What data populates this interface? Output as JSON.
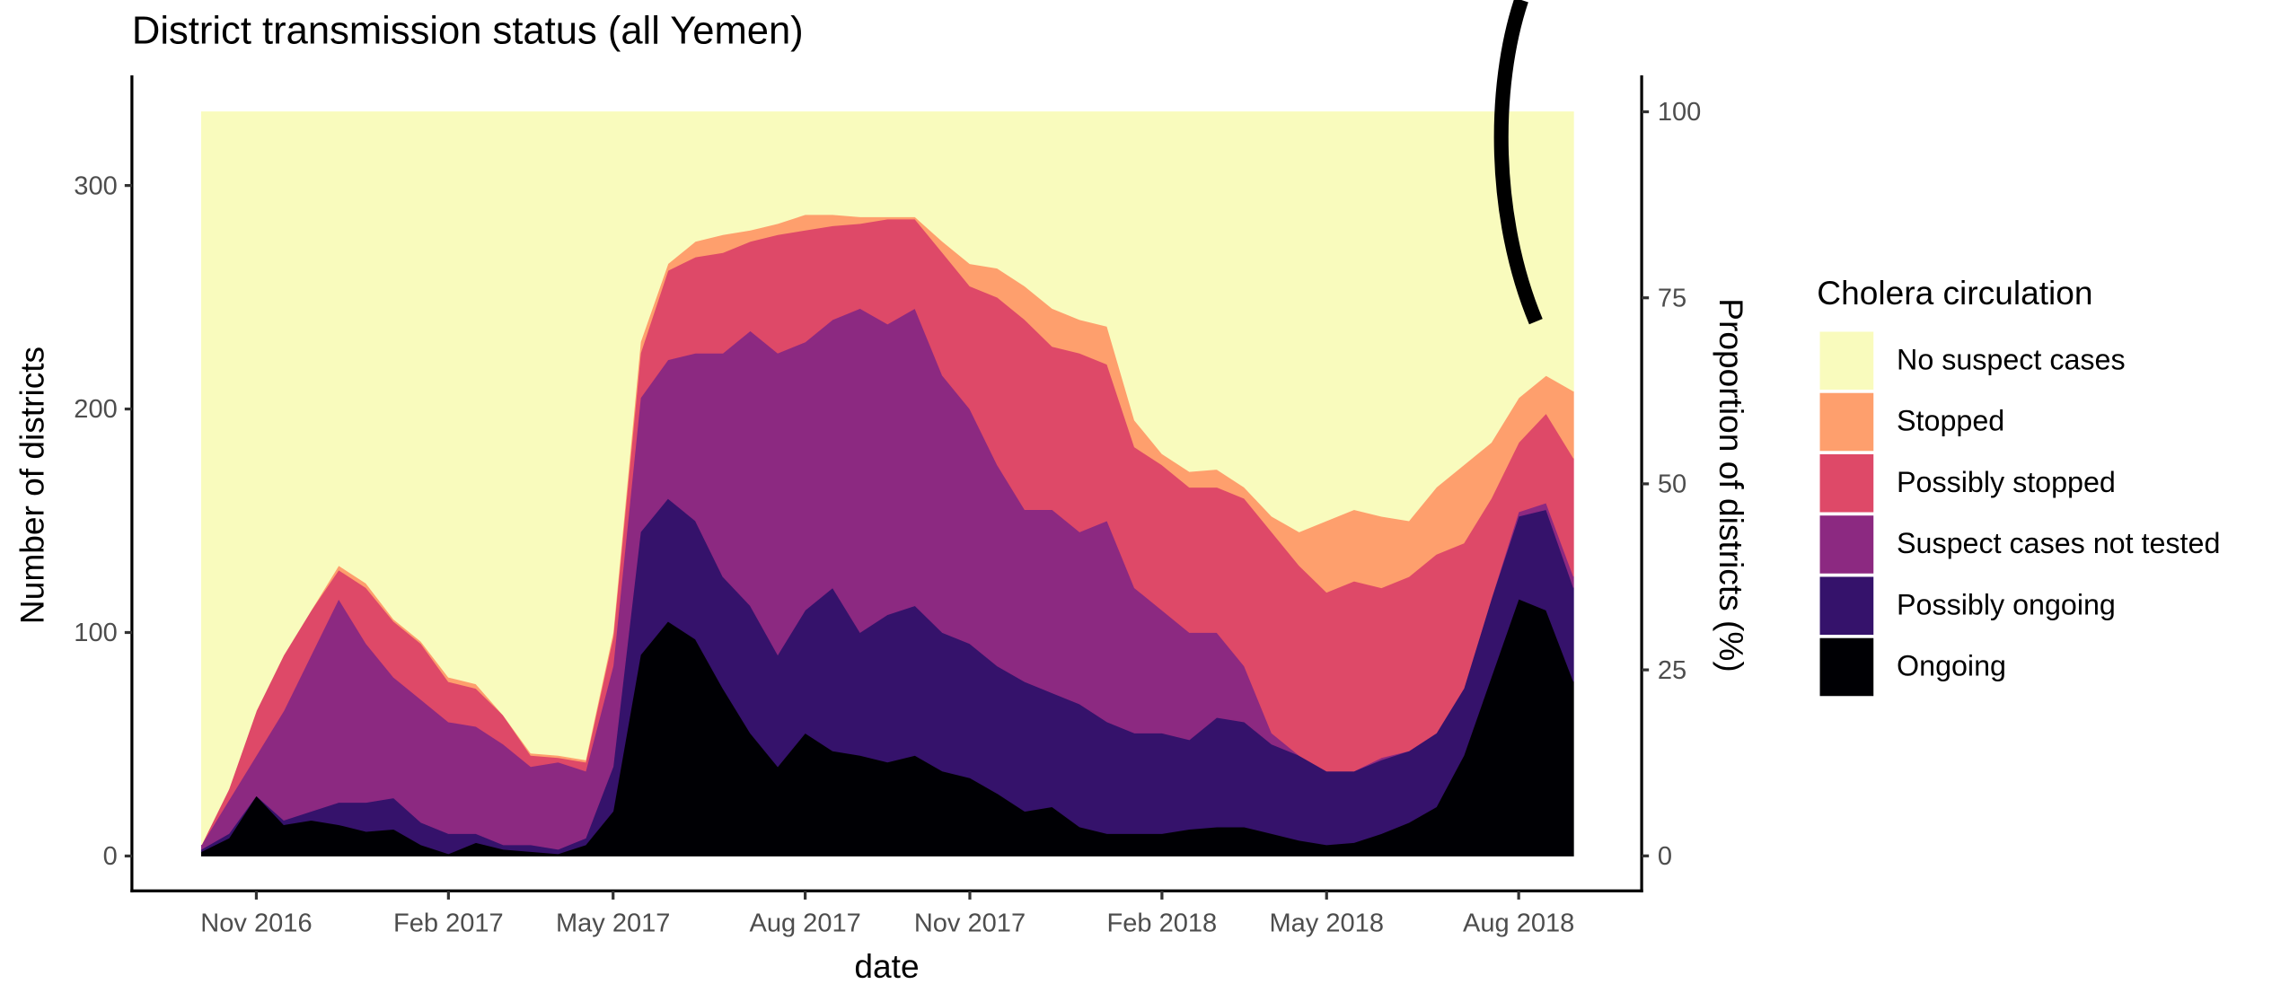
{
  "chart_data": {
    "type": "stacked-area",
    "title": "District transmission status (all Yemen)",
    "x_label": "date",
    "y_label": "Number of districts",
    "y2_label": "Proportion of districts (%)",
    "legend_title": "Cholera circulation",
    "legend": "right",
    "categories": [
      null,
      null,
      "Nov 2016",
      null,
      null,
      null,
      null,
      null,
      null,
      "Feb 2017",
      null,
      null,
      null,
      null,
      null,
      "May 2017",
      null,
      null,
      null,
      null,
      null,
      null,
      "Aug 2017",
      null,
      null,
      null,
      null,
      null,
      "Nov 2017",
      null,
      null,
      null,
      null,
      null,
      null,
      "Feb 2018",
      null,
      null,
      null,
      null,
      null,
      "May 2018",
      null,
      null,
      null,
      null,
      null,
      null,
      "Aug 2018",
      null,
      null
    ],
    "ylim": [
      -15.6,
      349.3
    ],
    "yticks": [
      0,
      100,
      200,
      300
    ],
    "y2lim": [
      -4.7,
      104.9
    ],
    "y2ticks": [
      0,
      25,
      50,
      75,
      100
    ],
    "series": [
      {
        "name": "Ongoing",
        "color": "#000004",
        "values": [
          2,
          8,
          27,
          14,
          16,
          14,
          11,
          12,
          5,
          1,
          6,
          3,
          2,
          1,
          5,
          20,
          90,
          105,
          97,
          75,
          55,
          40,
          55,
          47,
          45,
          42,
          45,
          38,
          35,
          28,
          20,
          22,
          13,
          10,
          10,
          10,
          12,
          13,
          13,
          10,
          7,
          5,
          6,
          10,
          15,
          22,
          45,
          80,
          115,
          110,
          78
        ]
      },
      {
        "name": "Possibly ongoing",
        "color": "#35126b",
        "values": [
          1,
          2,
          0,
          2,
          4,
          10,
          13,
          14,
          10,
          9,
          4,
          2,
          3,
          2,
          3,
          20,
          55,
          55,
          53,
          50,
          57,
          50,
          55,
          73,
          55,
          66,
          67,
          62,
          60,
          57,
          58,
          51,
          55,
          50,
          45,
          45,
          40,
          49,
          47,
          40,
          38,
          33,
          32,
          33,
          32,
          33,
          30,
          35,
          37,
          45,
          42
        ]
      },
      {
        "name": "Suspect cases not tested",
        "color": "#8c2981",
        "values": [
          2,
          15,
          18,
          49,
          70,
          91,
          71,
          54,
          55,
          50,
          48,
          45,
          35,
          39,
          30,
          45,
          60,
          62,
          75,
          100,
          123,
          135,
          120,
          120,
          145,
          130,
          133,
          115,
          105,
          90,
          77,
          82,
          77,
          90,
          65,
          55,
          48,
          38,
          25,
          5,
          0,
          0,
          0,
          1,
          0,
          0,
          0,
          0,
          2,
          3,
          5
        ]
      },
      {
        "name": "Possibly stopped",
        "color": "#de4968",
        "values": [
          0,
          5,
          20,
          25,
          20,
          13,
          25,
          25,
          25,
          18,
          17,
          13,
          5,
          2,
          4,
          13,
          20,
          40,
          43,
          45,
          40,
          53,
          50,
          42,
          38,
          47,
          40,
          55,
          55,
          75,
          85,
          73,
          80,
          70,
          63,
          65,
          65,
          65,
          75,
          90,
          85,
          80,
          85,
          76,
          78,
          80,
          65,
          45,
          31,
          40,
          53
        ]
      },
      {
        "name": "Stopped",
        "color": "#fe9f6d",
        "values": [
          0,
          0,
          0,
          0,
          0,
          2,
          2,
          1,
          1,
          2,
          2,
          0,
          1,
          1,
          1,
          2,
          5,
          3,
          7,
          8,
          5,
          5,
          7,
          5,
          3,
          1,
          1,
          5,
          10,
          13,
          15,
          17,
          15,
          17,
          12,
          5,
          7,
          8,
          5,
          7,
          15,
          32,
          32,
          32,
          25,
          30,
          35,
          25,
          20,
          17,
          30
        ]
      },
      {
        "name": "No suspect cases",
        "color": "#f9fbbd",
        "values": [
          328,
          303,
          268,
          243,
          223,
          203,
          211,
          227,
          237,
          253,
          256,
          270,
          287,
          288,
          290,
          233,
          103,
          68,
          58,
          55,
          53,
          50,
          46,
          46,
          47,
          47,
          47,
          58,
          68,
          70,
          78,
          88,
          93,
          96,
          138,
          153,
          161,
          160,
          168,
          181,
          188,
          183,
          178,
          181,
          183,
          168,
          158,
          148,
          128,
          118,
          125
        ]
      }
    ]
  }
}
